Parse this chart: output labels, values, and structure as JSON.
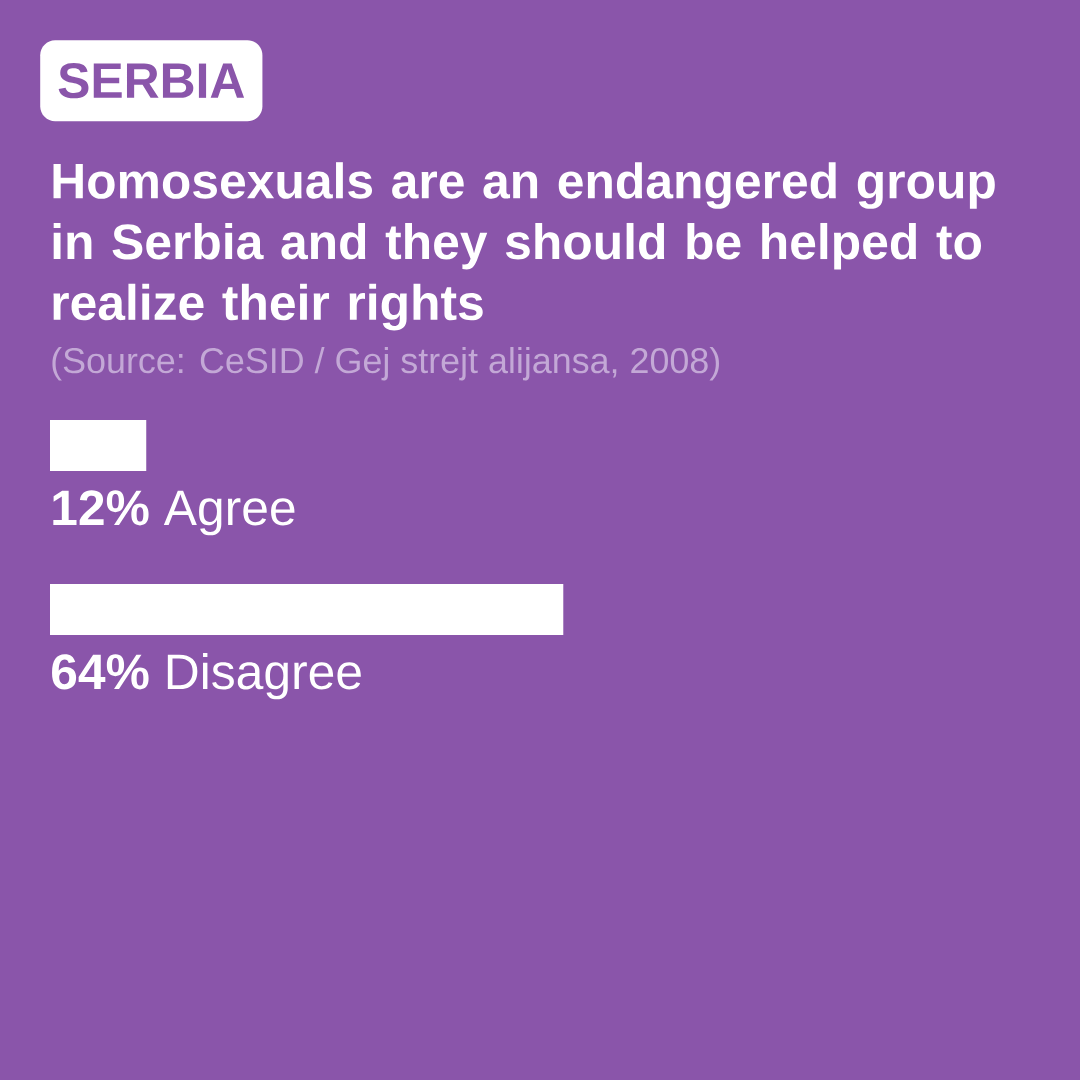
{
  "chart_data": {
    "type": "bar",
    "orientation": "horizontal",
    "title": "Homosexuals are an endangered group in Serbia and they should be helped to realize their rights",
    "annotations": [
      "SERBIA",
      "(Source: CeSID / Gej strejt alijansa, 2008)"
    ],
    "categories": [
      "Agree",
      "Disagree"
    ],
    "values": [
      12,
      64
    ],
    "value_labels": [
      "12%",
      "64%"
    ],
    "color": "#ffffff"
  }
}
